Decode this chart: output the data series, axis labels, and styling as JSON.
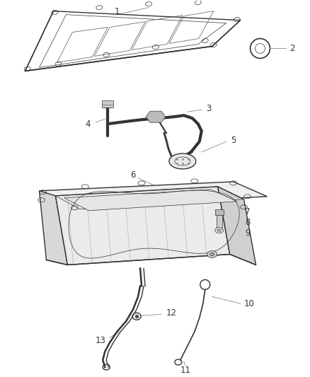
{
  "background_color": "#ffffff",
  "figure_width": 4.38,
  "figure_height": 5.33,
  "dpi": 100,
  "line_color": "#333333",
  "label_color": "#333333",
  "leader_color": "#888888",
  "label_fontsize": 8.5,
  "lw_main": 1.0,
  "lw_thin": 0.5,
  "lw_leader": 0.6
}
